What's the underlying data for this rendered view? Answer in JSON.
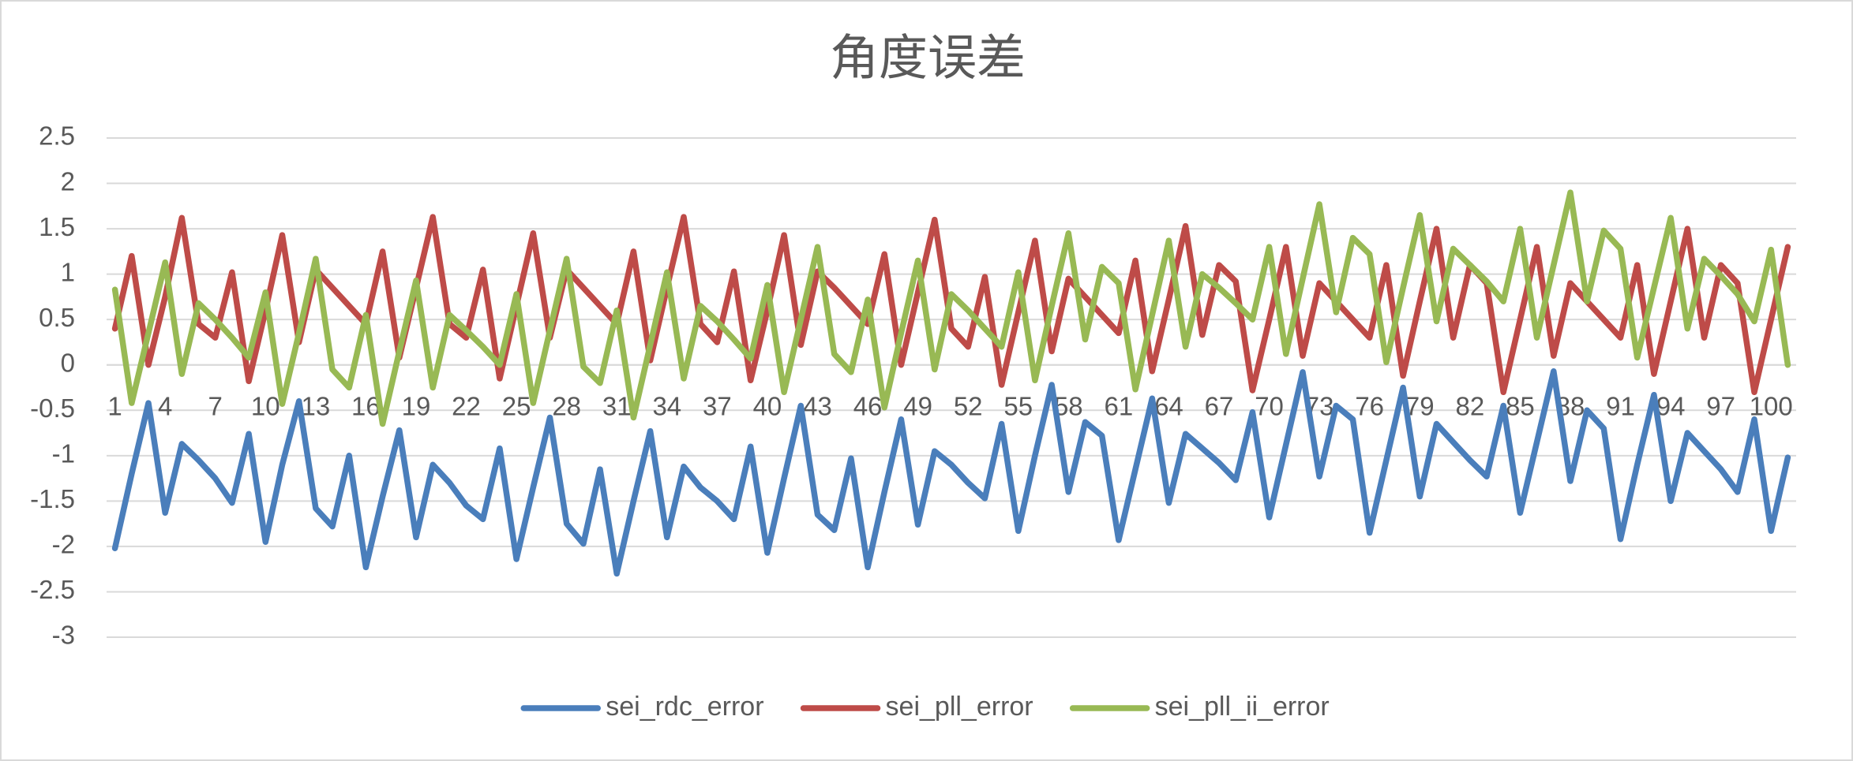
{
  "chart_data": {
    "type": "line",
    "title": "角度误差",
    "categories": [
      1,
      null,
      null,
      4,
      null,
      null,
      7,
      null,
      null,
      10,
      null,
      null,
      13,
      null,
      null,
      16,
      null,
      null,
      19,
      null,
      null,
      22,
      null,
      null,
      25,
      null,
      null,
      28,
      null,
      null,
      31,
      null,
      null,
      34,
      null,
      null,
      37,
      null,
      null,
      40,
      null,
      null,
      43,
      null,
      null,
      46,
      null,
      null,
      49,
      null,
      null,
      52,
      null,
      null,
      55,
      null,
      null,
      58,
      null,
      null,
      61,
      null,
      null,
      64,
      null,
      null,
      67,
      null,
      null,
      70,
      null,
      null,
      73,
      null,
      null,
      76,
      null,
      null,
      79,
      null,
      null,
      82,
      null,
      null,
      85,
      null,
      null,
      88,
      null,
      null,
      91,
      null,
      null,
      94,
      null,
      null,
      97,
      null,
      null,
      100,
      null
    ],
    "series": [
      {
        "name": "sei_rdc_error",
        "color": "#4a7ebb",
        "values": [
          -2.02,
          -1.2,
          -0.42,
          -1.63,
          -0.87,
          -1.05,
          -1.25,
          -1.52,
          -0.76,
          -1.95,
          -1.1,
          -0.4,
          -1.58,
          -1.78,
          -1.0,
          -2.23,
          -1.45,
          -0.72,
          -1.9,
          -1.1,
          -1.3,
          -1.55,
          -1.7,
          -0.92,
          -2.14,
          -1.35,
          -0.58,
          -1.75,
          -1.97,
          -1.15,
          -2.3,
          -1.5,
          -0.73,
          -1.9,
          -1.12,
          -1.35,
          -1.5,
          -1.7,
          -0.9,
          -2.07,
          -1.25,
          -0.45,
          -1.65,
          -1.82,
          -1.03,
          -2.23,
          -1.4,
          -0.6,
          -1.76,
          -0.95,
          -1.1,
          -1.3,
          -1.47,
          -0.65,
          -1.83,
          -1.0,
          -0.22,
          -1.4,
          -0.63,
          -0.78,
          -1.93,
          -1.15,
          -0.37,
          -1.52,
          -0.76,
          -0.92,
          -1.08,
          -1.27,
          -0.52,
          -1.68,
          -0.88,
          -0.08,
          -1.23,
          -0.45,
          -0.6,
          -1.85,
          -1.05,
          -0.25,
          -1.45,
          -0.65,
          -0.85,
          -1.05,
          -1.23,
          -0.45,
          -1.63,
          -0.85,
          -0.07,
          -1.28,
          -0.5,
          -0.7,
          -1.92,
          -1.1,
          -0.33,
          -1.5,
          -0.75,
          -0.95,
          -1.15,
          -1.4,
          -0.6,
          -1.83,
          -1.02
        ]
      },
      {
        "name": "sei_pll_error",
        "color": "#be4b48",
        "values": [
          0.4,
          1.2,
          0.0,
          0.75,
          1.62,
          0.45,
          0.3,
          1.02,
          -0.18,
          0.6,
          1.43,
          0.25,
          1.05,
          0.85,
          0.65,
          0.45,
          1.25,
          0.08,
          0.85,
          1.63,
          0.45,
          0.3,
          1.05,
          -0.15,
          0.65,
          1.45,
          0.3,
          1.05,
          0.85,
          0.65,
          0.45,
          1.25,
          0.05,
          0.85,
          1.63,
          0.45,
          0.25,
          1.03,
          -0.17,
          0.6,
          1.43,
          0.22,
          1.03,
          0.85,
          0.65,
          0.45,
          1.22,
          0.0,
          0.8,
          1.6,
          0.4,
          0.2,
          0.97,
          -0.22,
          0.58,
          1.37,
          0.15,
          0.95,
          0.75,
          0.55,
          0.35,
          1.15,
          -0.07,
          0.72,
          1.53,
          0.33,
          1.1,
          0.92,
          -0.28,
          0.5,
          1.3,
          0.1,
          0.9,
          0.7,
          0.5,
          0.3,
          1.1,
          -0.12,
          0.7,
          1.5,
          0.3,
          1.1,
          0.9,
          -0.3,
          0.5,
          1.3,
          0.1,
          0.9,
          0.7,
          0.5,
          0.3,
          1.1,
          -0.1,
          0.7,
          1.5,
          0.3,
          1.1,
          0.9,
          -0.3,
          0.5,
          1.3
        ]
      },
      {
        "name": "sei_pll_ii_error",
        "color": "#98b954",
        "values": [
          0.83,
          -0.42,
          0.35,
          1.13,
          -0.1,
          0.68,
          0.5,
          0.3,
          0.08,
          0.8,
          -0.43,
          0.35,
          1.17,
          -0.05,
          -0.25,
          0.55,
          -0.65,
          0.15,
          0.93,
          -0.25,
          0.55,
          0.38,
          0.2,
          0.0,
          0.78,
          -0.42,
          0.38,
          1.17,
          -0.02,
          -0.2,
          0.6,
          -0.58,
          0.22,
          1.02,
          -0.15,
          0.65,
          0.48,
          0.28,
          0.07,
          0.88,
          -0.3,
          0.5,
          1.3,
          0.12,
          -0.08,
          0.72,
          -0.47,
          0.35,
          1.15,
          -0.05,
          0.78,
          0.6,
          0.4,
          0.2,
          1.02,
          -0.17,
          0.65,
          1.45,
          0.28,
          1.08,
          0.9,
          -0.27,
          0.55,
          1.37,
          0.2,
          1.0,
          0.85,
          0.68,
          0.5,
          1.3,
          0.12,
          0.95,
          1.77,
          0.58,
          1.4,
          1.22,
          0.03,
          0.85,
          1.65,
          0.48,
          1.28,
          1.1,
          0.92,
          0.7,
          1.5,
          0.3,
          1.1,
          1.9,
          0.7,
          1.48,
          1.28,
          0.08,
          0.85,
          1.62,
          0.4,
          1.17,
          0.98,
          0.78,
          0.48,
          1.27,
          0.0
        ]
      }
    ],
    "ylim": [
      -3,
      2.5
    ],
    "yticks": [
      -3,
      -2.5,
      -2,
      -1.5,
      -1,
      -0.5,
      0,
      0.5,
      1,
      1.5,
      2,
      2.5
    ],
    "grid": true,
    "legend": "bottom"
  }
}
